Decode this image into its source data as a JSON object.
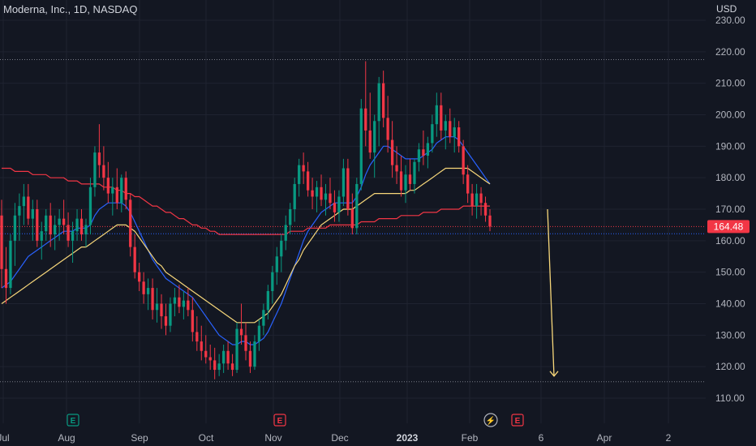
{
  "chart_data": {
    "type": "candlestick",
    "title": "Moderna, Inc., 1D, NASDAQ",
    "currency": "USD",
    "y_ticks": [
      110,
      120,
      130,
      140,
      150,
      160,
      170,
      180,
      190,
      200,
      210,
      220,
      230
    ],
    "y_tick_labels": [
      "110.00",
      "120.00",
      "130.00",
      "140.00",
      "150.00",
      "160.00",
      "170.00",
      "180.00",
      "190.00",
      "200.00",
      "210.00",
      "220.00",
      "230.00"
    ],
    "ylim": [
      107.5,
      233
    ],
    "x_ticks": [
      {
        "label": "Jul",
        "bold": false
      },
      {
        "label": "Aug",
        "bold": false
      },
      {
        "label": "Sep",
        "bold": false
      },
      {
        "label": "Oct",
        "bold": false
      },
      {
        "label": "Nov",
        "bold": false
      },
      {
        "label": "Dec",
        "bold": false
      },
      {
        "label": "2023",
        "bold": true
      },
      {
        "label": "Feb",
        "bold": false
      },
      {
        "label": "6",
        "bold": false
      },
      {
        "label": "Apr",
        "bold": false
      },
      {
        "label": "2",
        "bold": false
      }
    ],
    "last_price": 164.48,
    "last_price_label": "164.48",
    "horizontal_levels": [
      217.5,
      115.2,
      162.2
    ],
    "forecast_arrow": {
      "from": 170,
      "to": 117
    },
    "candles": [
      [
        168,
        173,
        145,
        151
      ],
      [
        151,
        158,
        140,
        145
      ],
      [
        145,
        162,
        143,
        160
      ],
      [
        160,
        172,
        152,
        168
      ],
      [
        168,
        175,
        160,
        171
      ],
      [
        171,
        178,
        165,
        174
      ],
      [
        174,
        178,
        165,
        167
      ],
      [
        167,
        173,
        160,
        170
      ],
      [
        170,
        173,
        158,
        160
      ],
      [
        160,
        166,
        154,
        163
      ],
      [
        163,
        170,
        160,
        168
      ],
      [
        168,
        172,
        158,
        162
      ],
      [
        162,
        168,
        157,
        165
      ],
      [
        165,
        170,
        160,
        167
      ],
      [
        167,
        173,
        162,
        165
      ],
      [
        165,
        169,
        158,
        160
      ],
      [
        160,
        166,
        153,
        163
      ],
      [
        163,
        170,
        160,
        167
      ],
      [
        167,
        170,
        160,
        162
      ],
      [
        162,
        167,
        158,
        165
      ],
      [
        165,
        180,
        162,
        177
      ],
      [
        177,
        190,
        174,
        188
      ],
      [
        188,
        197,
        180,
        184
      ],
      [
        184,
        190,
        176,
        180
      ],
      [
        180,
        185,
        172,
        175
      ],
      [
        175,
        180,
        168,
        177
      ],
      [
        177,
        183,
        170,
        172
      ],
      [
        172,
        181,
        169,
        180
      ],
      [
        180,
        182,
        170,
        173
      ],
      [
        173,
        175,
        155,
        158
      ],
      [
        158,
        162,
        148,
        150
      ],
      [
        150,
        153,
        144,
        147
      ],
      [
        147,
        150,
        140,
        143
      ],
      [
        143,
        148,
        138,
        145
      ],
      [
        145,
        148,
        135,
        138
      ],
      [
        138,
        145,
        134,
        140
      ],
      [
        140,
        143,
        132,
        136
      ],
      [
        136,
        140,
        130,
        133
      ],
      [
        133,
        142,
        131,
        140
      ],
      [
        140,
        145,
        136,
        142
      ],
      [
        142,
        146,
        137,
        139
      ],
      [
        139,
        144,
        135,
        141
      ],
      [
        141,
        145,
        136,
        138
      ],
      [
        138,
        142,
        128,
        131
      ],
      [
        131,
        136,
        125,
        128
      ],
      [
        128,
        133,
        122,
        125
      ],
      [
        125,
        130,
        121,
        123
      ],
      [
        123,
        127,
        119,
        122
      ],
      [
        122,
        126,
        116,
        119
      ],
      [
        119,
        124,
        117,
        121
      ],
      [
        121,
        127,
        118,
        125
      ],
      [
        125,
        128,
        119,
        121
      ],
      [
        121,
        124,
        117,
        119
      ],
      [
        119,
        134,
        118,
        132
      ],
      [
        132,
        140,
        127,
        130
      ],
      [
        130,
        134,
        122,
        125
      ],
      [
        125,
        128,
        118,
        120
      ],
      [
        120,
        130,
        119,
        128
      ],
      [
        128,
        135,
        125,
        133
      ],
      [
        133,
        140,
        130,
        138
      ],
      [
        138,
        146,
        135,
        144
      ],
      [
        144,
        152,
        140,
        150
      ],
      [
        150,
        158,
        146,
        155
      ],
      [
        155,
        162,
        150,
        160
      ],
      [
        160,
        168,
        157,
        165
      ],
      [
        165,
        172,
        162,
        170
      ],
      [
        170,
        180,
        166,
        178
      ],
      [
        178,
        186,
        174,
        184
      ],
      [
        184,
        188,
        178,
        182
      ],
      [
        182,
        185,
        174,
        176
      ],
      [
        176,
        180,
        170,
        174
      ],
      [
        174,
        179,
        169,
        177
      ],
      [
        177,
        181,
        171,
        173
      ],
      [
        173,
        178,
        168,
        175
      ],
      [
        175,
        180,
        170,
        172
      ],
      [
        172,
        176,
        166,
        169
      ],
      [
        169,
        176,
        166,
        174
      ],
      [
        174,
        186,
        171,
        183
      ],
      [
        183,
        186,
        168,
        170
      ],
      [
        170,
        175,
        162,
        164
      ],
      [
        164,
        180,
        162,
        178
      ],
      [
        178,
        205,
        176,
        202
      ],
      [
        202,
        217,
        190,
        195
      ],
      [
        195,
        207,
        186,
        188
      ],
      [
        188,
        200,
        180,
        198
      ],
      [
        198,
        212,
        190,
        210
      ],
      [
        210,
        214,
        196,
        199
      ],
      [
        199,
        206,
        188,
        192
      ],
      [
        192,
        198,
        180,
        184
      ],
      [
        184,
        190,
        178,
        182
      ],
      [
        182,
        187,
        174,
        176
      ],
      [
        176,
        184,
        172,
        181
      ],
      [
        181,
        186,
        176,
        178
      ],
      [
        178,
        186,
        175,
        185
      ],
      [
        185,
        191,
        182,
        189
      ],
      [
        189,
        195,
        184,
        187
      ],
      [
        187,
        193,
        183,
        191
      ],
      [
        191,
        200,
        188,
        197
      ],
      [
        197,
        207,
        193,
        203
      ],
      [
        203,
        207,
        192,
        195
      ],
      [
        195,
        200,
        189,
        198
      ],
      [
        198,
        202,
        191,
        193
      ],
      [
        193,
        199,
        188,
        196
      ],
      [
        196,
        198,
        188,
        190
      ],
      [
        190,
        192,
        178,
        181
      ],
      [
        181,
        184,
        172,
        175
      ],
      [
        175,
        178,
        168,
        171
      ],
      [
        171,
        178,
        167,
        175
      ],
      [
        175,
        177,
        168,
        172
      ],
      [
        172,
        174,
        166,
        168
      ],
      [
        168,
        170,
        163,
        164.48
      ]
    ],
    "ma_series": [
      {
        "color": "#2962ff",
        "values": [
          145,
          146,
          147,
          149,
          151,
          153,
          155,
          156,
          157,
          158,
          159,
          160,
          161,
          162,
          163,
          163,
          163,
          164,
          164,
          164,
          165,
          168,
          170,
          171,
          172,
          172,
          172,
          172,
          171,
          169,
          166,
          163,
          160,
          157,
          154,
          152,
          150,
          148,
          147,
          146,
          145,
          144,
          143,
          142,
          140,
          138,
          136,
          134,
          132,
          130,
          129,
          128,
          127,
          127,
          128,
          128,
          127,
          127,
          128,
          129,
          131,
          134,
          137,
          140,
          144,
          148,
          152,
          156,
          160,
          163,
          165,
          167,
          169,
          170,
          171,
          172,
          172,
          172,
          172,
          172,
          174,
          177,
          181,
          184,
          186,
          188,
          190,
          190,
          189,
          188,
          187,
          186,
          186,
          186,
          186,
          187,
          188,
          189,
          191,
          192,
          193,
          193,
          193,
          192,
          190,
          188,
          186,
          184,
          182,
          180,
          178
        ]
      },
      {
        "color": "#f7d77a",
        "values": [
          140,
          141,
          142,
          143,
          144,
          145,
          146,
          147,
          148,
          149,
          150,
          151,
          152,
          153,
          154,
          155,
          156,
          157,
          158,
          158,
          159,
          160,
          161,
          162,
          163,
          164,
          165,
          165,
          165,
          164,
          163,
          161,
          159,
          157,
          155,
          153,
          152,
          150,
          149,
          148,
          147,
          146,
          145,
          144,
          143,
          142,
          141,
          140,
          139,
          138,
          137,
          136,
          135,
          134,
          134,
          134,
          134,
          134,
          135,
          136,
          137,
          139,
          141,
          143,
          146,
          149,
          152,
          154,
          157,
          159,
          161,
          163,
          165,
          166,
          167,
          168,
          169,
          170,
          170,
          170,
          171,
          172,
          173,
          174,
          175,
          175,
          175,
          175,
          175,
          175,
          175,
          175,
          176,
          176,
          177,
          178,
          179,
          180,
          181,
          182,
          183,
          183,
          183,
          183,
          183,
          183,
          182,
          181,
          180,
          179,
          178
        ]
      },
      {
        "color": "#f23645",
        "values": [
          183,
          183,
          183,
          182,
          182,
          182,
          182,
          181,
          181,
          181,
          181,
          180,
          180,
          180,
          180,
          179,
          179,
          179,
          178,
          178,
          178,
          178,
          178,
          177,
          177,
          177,
          176,
          176,
          175,
          175,
          174,
          174,
          173,
          172,
          171,
          171,
          170,
          169,
          169,
          168,
          167,
          167,
          166,
          165,
          165,
          164,
          164,
          163,
          163,
          162,
          162,
          162,
          162,
          162,
          162,
          162,
          162,
          162,
          162,
          162,
          162,
          162,
          162,
          162,
          162,
          163,
          163,
          163,
          163,
          164,
          164,
          164,
          164,
          164,
          165,
          165,
          165,
          165,
          165,
          165,
          165,
          166,
          166,
          166,
          166,
          167,
          167,
          167,
          167,
          167,
          168,
          168,
          168,
          168,
          168,
          169,
          169,
          169,
          169,
          170,
          170,
          170,
          170,
          170,
          171,
          171,
          171,
          171,
          171,
          171,
          171
        ]
      }
    ],
    "event_badges": [
      {
        "label": "E",
        "type": "earnings"
      },
      {
        "label": "E",
        "type": "earnings-miss"
      },
      {
        "label": "⚡",
        "type": "dividend"
      },
      {
        "label": "E",
        "type": "earnings-miss"
      }
    ],
    "colors": {
      "up": "#089981",
      "down": "#f23645",
      "grid": "#1f2330",
      "text": "#b2b5be",
      "background": "#131722",
      "arrow": "#f7d77a",
      "badge_green": "#089981",
      "badge_red": "#f23645"
    }
  }
}
